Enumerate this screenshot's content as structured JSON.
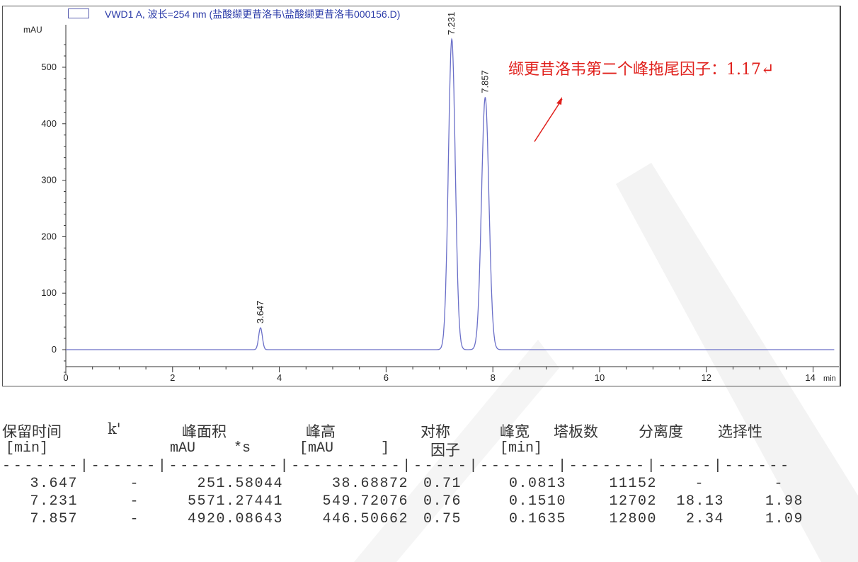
{
  "chart_data": {
    "type": "line",
    "title": "VWD1 A, 波长=254 nm (盐酸缬更昔洛韦\\盐酸缬更昔洛韦000156.D)",
    "xlabel": "min",
    "ylabel": "mAU",
    "xlim": [
      0,
      14.4
    ],
    "ylim": [
      -40,
      570
    ],
    "x_ticks": [
      "0",
      "2",
      "4",
      "6",
      "8",
      "10",
      "12",
      "14"
    ],
    "x_last_tick_unit": "min",
    "y_ticks": [
      "0",
      "100",
      "200",
      "300",
      "400",
      "500"
    ],
    "series_color": "#6a6fc8",
    "peaks": [
      {
        "label": "3.647",
        "rt": 3.647,
        "height": 38.68872,
        "width": 0.0813
      },
      {
        "label": "7.231",
        "rt": 7.231,
        "height": 549.72076,
        "width": 0.151
      },
      {
        "label": "7.857",
        "rt": 7.857,
        "height": 446.50662,
        "width": 0.1635
      }
    ]
  },
  "annotation": {
    "text": "缬更昔洛韦第二个峰拖尾因子：1.17↵",
    "color": "#e0201c"
  },
  "table": {
    "headers_row1": [
      "保留时间",
      "k'",
      "峰面积",
      "峰高",
      "对称",
      "峰宽",
      "塔板数",
      "分离度",
      "选择性"
    ],
    "headers_row2": [
      "[min]",
      "mAU",
      "*s",
      "[mAU",
      "]",
      "因子",
      "[min]"
    ],
    "separator": "-------|------|----------|----------|-----|-------|-------|-----|------",
    "rows": [
      [
        "3.647",
        "-",
        "251.58044",
        "38.68872",
        "0.71",
        "0.0813",
        "11152",
        "-",
        "-"
      ],
      [
        "7.231",
        "-",
        "5571.27441",
        "549.72076",
        "0.76",
        "0.1510",
        "12702",
        "18.13",
        "1.98"
      ],
      [
        "7.857",
        "-",
        "4920.08643",
        "446.50662",
        "0.75",
        "0.1635",
        "12800",
        "2.34",
        "1.09"
      ]
    ]
  }
}
